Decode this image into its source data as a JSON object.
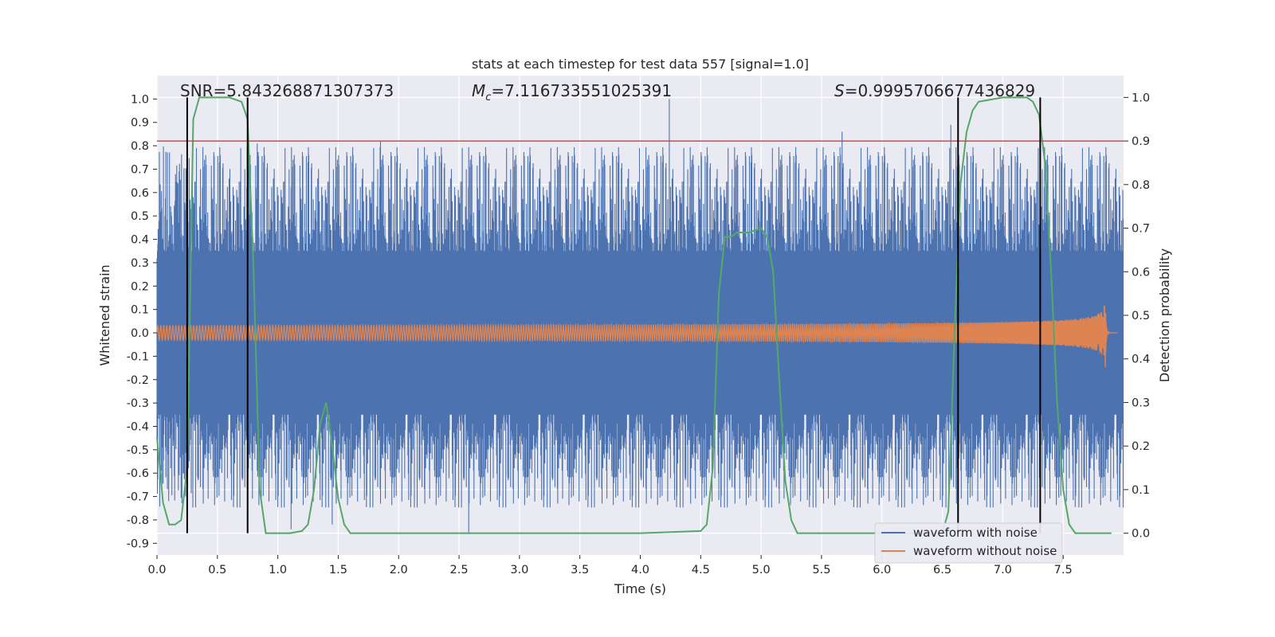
{
  "chart_data": {
    "type": "line",
    "title": "stats at each timestep for test data 557 [signal=1.0]",
    "xlabel": "Time (s)",
    "ylabel_left": "Whitened strain",
    "ylabel_right": "Detection probability",
    "xlim": [
      0.0,
      8.0
    ],
    "ylim_left": [
      -0.95,
      1.1
    ],
    "ylim_right": [
      -0.05,
      1.05
    ],
    "x_ticks": [
      0.0,
      0.5,
      1.0,
      1.5,
      2.0,
      2.5,
      3.0,
      3.5,
      4.0,
      4.5,
      5.0,
      5.5,
      6.0,
      6.5,
      7.0,
      7.5
    ],
    "x_tick_labels": [
      "0.0",
      "0.5",
      "1.0",
      "1.5",
      "2.0",
      "2.5",
      "3.0",
      "3.5",
      "4.0",
      "4.5",
      "5.0",
      "5.5",
      "6.0",
      "6.5",
      "7.0",
      "7.5"
    ],
    "y_left_ticks": [
      1.0,
      0.9,
      0.8,
      0.7,
      0.6,
      0.5,
      0.4,
      0.3,
      0.2,
      0.1,
      0.0,
      -0.1,
      -0.2,
      -0.3,
      -0.4,
      -0.5,
      -0.6,
      -0.7,
      -0.8,
      -0.9
    ],
    "y_left_tick_labels": [
      "1.0",
      "0.9",
      "0.8",
      "0.7",
      "0.6",
      "0.5",
      "0.4",
      "0.3",
      "0.2",
      "0.1",
      "0.0",
      "-0.1",
      "-0.2",
      "-0.3",
      "-0.4",
      "-0.5",
      "-0.6",
      "-0.7",
      "-0.8",
      "-0.9"
    ],
    "y_right_ticks": [
      1.0,
      0.9,
      0.8,
      0.7,
      0.6,
      0.5,
      0.4,
      0.3,
      0.2,
      0.1,
      0.0
    ],
    "y_right_tick_labels": [
      "1.0",
      "0.9",
      "0.8",
      "0.7",
      "0.6",
      "0.5",
      "0.4",
      "0.3",
      "0.2",
      "0.1",
      "0.0"
    ],
    "annotations": {
      "snr": "SNR=5.843268871307373",
      "mc_symbol": "M",
      "mc_sub": "c",
      "mc_value": "=7.116733551025391",
      "s_symbol": "S",
      "s_value": "=0.9995706677436829"
    },
    "series": [
      {
        "name": "waveform with noise",
        "color": "#4c72b0",
        "axis": "left",
        "noise_envelope_typical": [
          -0.35,
          0.35
        ],
        "peak_max": 1.0,
        "peak_min": -0.86
      },
      {
        "name": "waveform without noise",
        "color": "#dd8452",
        "axis": "left",
        "kind": "chirp",
        "t_start": 0.0,
        "t_merger": 7.85,
        "amp_start": 0.01,
        "amp_peak": 0.15
      },
      {
        "name": "detection probability",
        "color": "#55a868",
        "axis": "right",
        "x": [
          0.0,
          0.05,
          0.1,
          0.15,
          0.2,
          0.25,
          0.3,
          0.35,
          0.4,
          0.5,
          0.6,
          0.7,
          0.75,
          0.8,
          0.85,
          0.9,
          1.0,
          1.1,
          1.2,
          1.25,
          1.3,
          1.35,
          1.4,
          1.45,
          1.5,
          1.55,
          1.6,
          2.0,
          3.0,
          4.0,
          4.5,
          4.55,
          4.6,
          4.65,
          4.7,
          4.75,
          4.8,
          4.9,
          5.0,
          5.05,
          5.1,
          5.15,
          5.2,
          5.25,
          5.3,
          5.35,
          5.4,
          6.0,
          6.5,
          6.55,
          6.6,
          6.65,
          6.7,
          6.75,
          6.8,
          7.0,
          7.2,
          7.25,
          7.3,
          7.35,
          7.4,
          7.45,
          7.5,
          7.55,
          7.6,
          7.9
        ],
        "y": [
          0.22,
          0.07,
          0.02,
          0.02,
          0.03,
          0.15,
          0.95,
          1.0,
          1.0,
          1.0,
          1.0,
          0.99,
          0.95,
          0.6,
          0.1,
          0.0,
          0.0,
          0.0,
          0.005,
          0.02,
          0.1,
          0.25,
          0.3,
          0.2,
          0.08,
          0.02,
          0.0,
          0.0,
          0.0,
          0.0,
          0.005,
          0.02,
          0.15,
          0.55,
          0.68,
          0.68,
          0.69,
          0.69,
          0.7,
          0.68,
          0.6,
          0.35,
          0.12,
          0.03,
          0.0,
          0.0,
          0.0,
          0.0,
          0.0,
          0.05,
          0.45,
          0.8,
          0.92,
          0.97,
          0.99,
          1.0,
          1.0,
          0.99,
          0.96,
          0.85,
          0.6,
          0.3,
          0.1,
          0.02,
          0.0,
          0.0
        ]
      }
    ],
    "threshold_line": {
      "value": 0.9,
      "axis": "right",
      "color": "#c44e52"
    },
    "detection_intervals": [
      [
        0.25,
        0.75
      ],
      [
        6.63,
        7.31
      ]
    ],
    "legend": {
      "placement": "lower-right",
      "entries": [
        "waveform with noise",
        "waveform without noise"
      ]
    },
    "grid": true,
    "colors": {
      "background": "#eaeaf2",
      "grid": "#ffffff",
      "vlines": "#000000"
    }
  }
}
